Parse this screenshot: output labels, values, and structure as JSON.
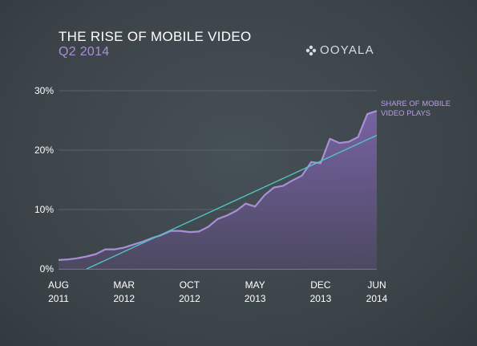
{
  "header": {
    "title": "THE RISE OF MOBILE VIDEO",
    "subtitle": "Q2 2014"
  },
  "logo": {
    "text": "OOYALA",
    "icon": "ooyala-flower-icon"
  },
  "colors": {
    "background": "#3f474d",
    "series_fill": "#6e5a96",
    "series_line": "#a98fd6",
    "trend_line": "#4fc4c4",
    "grid": "#5a6369",
    "text": "#ffffff",
    "accent": "#a98fd6"
  },
  "chart_data": {
    "type": "area",
    "title": "THE RISE OF MOBILE VIDEO",
    "subtitle": "Q2 2014",
    "xlabel": "",
    "ylabel": "",
    "ylim": [
      0,
      30
    ],
    "yticks": [
      "0%",
      "10%",
      "20%",
      "30%"
    ],
    "xticks": [
      {
        "month": "AUG",
        "year": "2011"
      },
      {
        "month": "MAR",
        "year": "2012"
      },
      {
        "month": "OCT",
        "year": "2012"
      },
      {
        "month": "MAY",
        "year": "2013"
      },
      {
        "month": "DEC",
        "year": "2013"
      },
      {
        "month": "JUN",
        "year": "2014"
      }
    ],
    "grid": true,
    "legend": "right",
    "series": [
      {
        "name": "SHARE OF MOBILE VIDEO PLAYS",
        "type": "area",
        "x": [
          "2011-08",
          "2011-09",
          "2011-10",
          "2011-11",
          "2011-12",
          "2012-01",
          "2012-02",
          "2012-03",
          "2012-04",
          "2012-05",
          "2012-06",
          "2012-07",
          "2012-08",
          "2012-09",
          "2012-10",
          "2012-11",
          "2012-12",
          "2013-01",
          "2013-02",
          "2013-03",
          "2013-04",
          "2013-05",
          "2013-06",
          "2013-07",
          "2013-08",
          "2013-09",
          "2013-10",
          "2013-11",
          "2013-12",
          "2014-01",
          "2014-02",
          "2014-03",
          "2014-04",
          "2014-05",
          "2014-06"
        ],
        "values": [
          1.5,
          1.6,
          1.8,
          2.1,
          2.5,
          3.3,
          3.3,
          3.6,
          4.1,
          4.6,
          5.2,
          5.7,
          6.4,
          6.4,
          6.2,
          6.3,
          7.1,
          8.4,
          9.0,
          9.8,
          11.0,
          10.5,
          12.4,
          13.7,
          14.0,
          14.9,
          15.7,
          18.0,
          17.8,
          21.9,
          21.2,
          21.4,
          22.2,
          26.1,
          26.6
        ]
      },
      {
        "name": "",
        "type": "trend",
        "x": [
          "2011-11",
          "2014-06"
        ],
        "values": [
          0,
          22.5
        ]
      }
    ]
  }
}
